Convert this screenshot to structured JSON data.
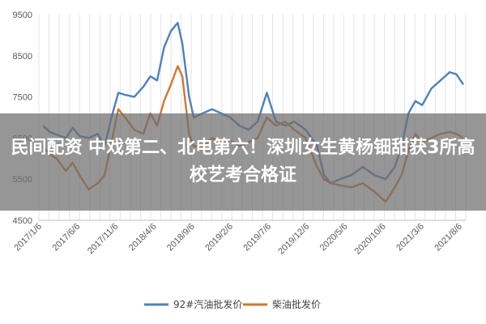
{
  "headline": "民间配资 中戏第二、北电第六！深圳女生黄杨钿甜获3所高校艺考合格证",
  "colors": {
    "gasoline": "#4F81BD",
    "diesel": "#D0782F",
    "overlay": "#6e6e6e"
  },
  "chart_data": {
    "type": "line",
    "title": "",
    "xlabel": "",
    "ylabel": "",
    "ylim": [
      4500,
      9500
    ],
    "yticks": [
      4500,
      5500,
      6500,
      7500,
      8500,
      9500
    ],
    "xtick_labels": [
      "2017/1/6",
      "2017/6/6",
      "2017/11/6",
      "2018/4/6",
      "2018/9/6",
      "2019/2/6",
      "2019/7/6",
      "2019/12/6",
      "2020/5/6",
      "2020/10/6",
      "2021/3/6",
      "2021/8/6"
    ],
    "grid": "vertical",
    "legend_position": "bottom",
    "series": [
      {
        "name": "92#汽油批发价",
        "points": [
          [
            0,
            6800
          ],
          [
            0.3,
            6650
          ],
          [
            0.6,
            6580
          ],
          [
            1,
            6500
          ],
          [
            1.3,
            6750
          ],
          [
            1.6,
            6550
          ],
          [
            2,
            6500
          ],
          [
            2.4,
            6600
          ],
          [
            2.7,
            6300
          ],
          [
            3,
            7000
          ],
          [
            3.3,
            7600
          ],
          [
            3.6,
            7550
          ],
          [
            4,
            7500
          ],
          [
            4.4,
            7750
          ],
          [
            4.7,
            8000
          ],
          [
            5,
            7900
          ],
          [
            5.3,
            8700
          ],
          [
            5.6,
            9100
          ],
          [
            5.9,
            9300
          ],
          [
            6.1,
            8800
          ],
          [
            6.4,
            7500
          ],
          [
            6.6,
            7000
          ],
          [
            7,
            7100
          ],
          [
            7.4,
            7200
          ],
          [
            7.8,
            7100
          ],
          [
            8.2,
            7000
          ],
          [
            8.6,
            6800
          ],
          [
            9,
            6700
          ],
          [
            9.4,
            6900
          ],
          [
            9.8,
            7600
          ],
          [
            10.2,
            6900
          ],
          [
            10.6,
            6800
          ],
          [
            11,
            6900
          ],
          [
            11.5,
            6700
          ],
          [
            12,
            6300
          ],
          [
            12.3,
            5600
          ],
          [
            12.6,
            5400
          ],
          [
            13,
            5500
          ],
          [
            13.5,
            5600
          ],
          [
            14,
            5800
          ],
          [
            14.5,
            5600
          ],
          [
            15,
            5500
          ],
          [
            15.4,
            5800
          ],
          [
            15.7,
            6300
          ],
          [
            16,
            7100
          ],
          [
            16.3,
            7400
          ],
          [
            16.6,
            7300
          ],
          [
            17,
            7700
          ],
          [
            17.4,
            7900
          ],
          [
            17.8,
            8100
          ],
          [
            18.1,
            8050
          ],
          [
            18.4,
            7800
          ]
        ]
      },
      {
        "name": "柴油批发价",
        "points": [
          [
            0,
            6300
          ],
          [
            0.3,
            6100
          ],
          [
            0.6,
            6000
          ],
          [
            1,
            5700
          ],
          [
            1.3,
            5900
          ],
          [
            1.6,
            5600
          ],
          [
            2,
            5250
          ],
          [
            2.4,
            5400
          ],
          [
            2.7,
            5600
          ],
          [
            3,
            6400
          ],
          [
            3.3,
            7200
          ],
          [
            3.6,
            7000
          ],
          [
            4,
            6700
          ],
          [
            4.4,
            6600
          ],
          [
            4.7,
            7100
          ],
          [
            5,
            6800
          ],
          [
            5.3,
            7400
          ],
          [
            5.6,
            7800
          ],
          [
            5.9,
            8250
          ],
          [
            6.1,
            8000
          ],
          [
            6.4,
            6600
          ],
          [
            6.6,
            6300
          ],
          [
            7,
            6300
          ],
          [
            7.4,
            6500
          ],
          [
            7.8,
            6400
          ],
          [
            8.2,
            6450
          ],
          [
            8.6,
            6300
          ],
          [
            9,
            6400
          ],
          [
            9.4,
            6500
          ],
          [
            9.8,
            7000
          ],
          [
            10.2,
            6800
          ],
          [
            10.6,
            6900
          ],
          [
            11,
            6700
          ],
          [
            11.5,
            6500
          ],
          [
            12,
            5800
          ],
          [
            12.3,
            5500
          ],
          [
            12.6,
            5400
          ],
          [
            13,
            5350
          ],
          [
            13.5,
            5300
          ],
          [
            14,
            5400
          ],
          [
            14.5,
            5200
          ],
          [
            15,
            4950
          ],
          [
            15.4,
            5300
          ],
          [
            15.7,
            5600
          ],
          [
            16,
            6200
          ],
          [
            16.3,
            6600
          ],
          [
            16.6,
            6400
          ],
          [
            17,
            6500
          ],
          [
            17.4,
            6600
          ],
          [
            17.8,
            6650
          ],
          [
            18.1,
            6600
          ],
          [
            18.4,
            6500
          ]
        ]
      }
    ]
  }
}
